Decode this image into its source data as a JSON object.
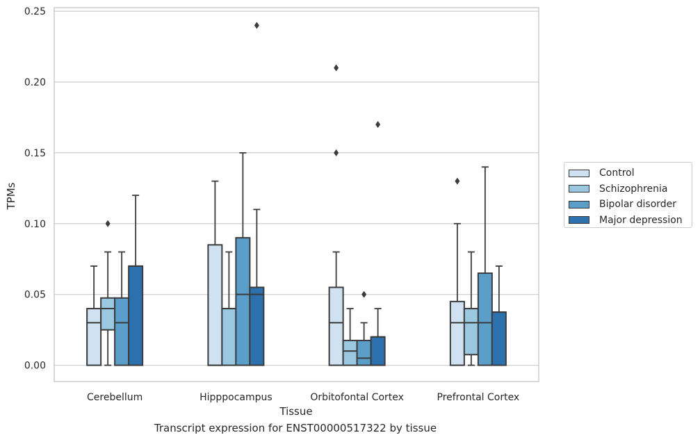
{
  "chart_data": {
    "type": "box",
    "title": "",
    "caption": "Transcript expression for ENST00000517322 by tissue",
    "xlabel": "Tissue",
    "ylabel": "TPMs",
    "ylim": [
      -0.0115,
      0.2525
    ],
    "yticks": [
      "0.00",
      "0.05",
      "0.10",
      "0.15",
      "0.20",
      "0.25"
    ],
    "grid": "horizontal",
    "legend_position": "right-center",
    "categories": [
      "Cerebellum",
      "Hipppocampus",
      "Orbitofontal Cortex",
      "Prefrontal Cortex"
    ],
    "series": [
      {
        "name": "Control",
        "color": "#d0e1f2",
        "boxes": [
          {
            "low": 0.0,
            "q1": 0.0,
            "median": 0.03,
            "q3": 0.04,
            "high": 0.07,
            "outliers": []
          },
          {
            "low": 0.0,
            "q1": 0.0,
            "median": 0.0,
            "q3": 0.085,
            "high": 0.13,
            "outliers": []
          },
          {
            "low": 0.0,
            "q1": 0.0,
            "median": 0.03,
            "q3": 0.055,
            "high": 0.08,
            "outliers": [
              0.21,
              0.15
            ]
          },
          {
            "low": 0.0,
            "q1": 0.0,
            "median": 0.03,
            "q3": 0.045,
            "high": 0.1,
            "outliers": [
              0.13
            ]
          }
        ]
      },
      {
        "name": "Schizophrenia",
        "color": "#9ac8e0",
        "boxes": [
          {
            "low": 0.0,
            "q1": 0.025,
            "median": 0.04,
            "q3": 0.0475,
            "high": 0.08,
            "outliers": [
              0.1
            ]
          },
          {
            "low": 0.0,
            "q1": 0.0,
            "median": 0.04,
            "q3": 0.04,
            "high": 0.08,
            "outliers": []
          },
          {
            "low": 0.0,
            "q1": 0.0,
            "median": 0.01,
            "q3": 0.0175,
            "high": 0.04,
            "outliers": []
          },
          {
            "low": 0.0,
            "q1": 0.0075,
            "median": 0.03,
            "q3": 0.04,
            "high": 0.08,
            "outliers": []
          }
        ]
      },
      {
        "name": "Bipolar disorder",
        "color": "#5a9ec9",
        "boxes": [
          {
            "low": 0.0,
            "q1": 0.0,
            "median": 0.03,
            "q3": 0.0475,
            "high": 0.08,
            "outliers": []
          },
          {
            "low": 0.0,
            "q1": 0.0,
            "median": 0.05,
            "q3": 0.09,
            "high": 0.15,
            "outliers": []
          },
          {
            "low": 0.0,
            "q1": 0.0,
            "median": 0.005,
            "q3": 0.0175,
            "high": 0.03,
            "outliers": [
              0.05
            ]
          },
          {
            "low": 0.0,
            "q1": 0.0,
            "median": 0.03,
            "q3": 0.065,
            "high": 0.14,
            "outliers": []
          }
        ]
      },
      {
        "name": "Major depression",
        "color": "#2d70ae",
        "boxes": [
          {
            "low": 0.0,
            "q1": 0.0,
            "median": 0.07,
            "q3": 0.07,
            "high": 0.12,
            "outliers": []
          },
          {
            "low": 0.0,
            "q1": 0.0,
            "median": 0.05,
            "q3": 0.055,
            "high": 0.11,
            "outliers": [
              0.24
            ]
          },
          {
            "low": 0.0,
            "q1": 0.0,
            "median": 0.02,
            "q3": 0.02,
            "high": 0.04,
            "outliers": [
              0.17
            ]
          },
          {
            "low": 0.0,
            "q1": 0.0,
            "median": 0.0375,
            "q3": 0.0375,
            "high": 0.07,
            "outliers": []
          }
        ]
      }
    ]
  }
}
